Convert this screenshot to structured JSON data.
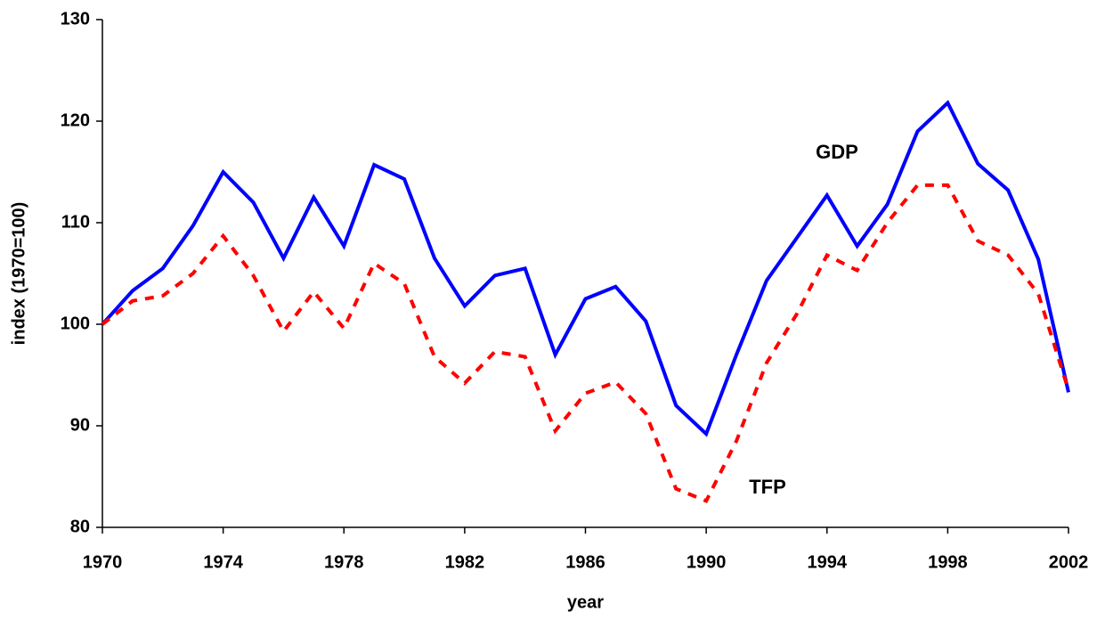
{
  "chart_data": {
    "type": "line",
    "x_label": "year",
    "y_label": "index (1970=100)",
    "x": [
      1970,
      1971,
      1972,
      1973,
      1974,
      1975,
      1976,
      1977,
      1978,
      1979,
      1980,
      1981,
      1982,
      1983,
      1984,
      1985,
      1986,
      1987,
      1988,
      1989,
      1990,
      1991,
      1992,
      1993,
      1994,
      1995,
      1996,
      1997,
      1998,
      1999,
      2000,
      2001,
      2002
    ],
    "series": [
      {
        "name": "GDP",
        "color": "#0000ff",
        "dashed": false,
        "values": [
          100,
          103.3,
          105.5,
          109.7,
          115,
          112,
          106.5,
          112.5,
          107.7,
          115.7,
          114.3,
          106.5,
          101.8,
          104.8,
          105.5,
          97,
          102.5,
          103.7,
          100.3,
          92,
          89.2,
          97,
          104.3,
          108.5,
          112.7,
          107.7,
          111.8,
          119,
          121.8,
          115.8,
          113.2,
          106.4,
          93.3
        ]
      },
      {
        "name": "TFP",
        "color": "#ff0000",
        "dashed": true,
        "values": [
          100,
          102.3,
          102.8,
          105,
          108.7,
          104.8,
          99.3,
          103.2,
          99.6,
          106,
          104,
          96.8,
          94.2,
          97.3,
          96.8,
          89.5,
          93.2,
          94.3,
          91.2,
          83.8,
          82.6,
          88.5,
          96.2,
          101,
          106.8,
          105.3,
          110,
          113.7,
          113.7,
          108.2,
          106.8,
          103,
          93.5
        ]
      }
    ],
    "xlim": [
      1970,
      2002
    ],
    "xticks": [
      1970,
      1974,
      1978,
      1982,
      1986,
      1990,
      1994,
      1998,
      2002
    ],
    "ylim": [
      80,
      130
    ],
    "yticks": [
      80,
      90,
      100,
      110,
      120,
      130
    ],
    "grid": false
  }
}
